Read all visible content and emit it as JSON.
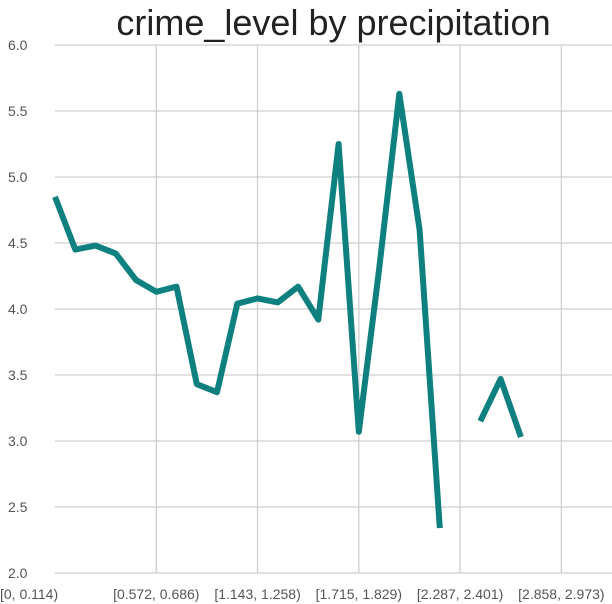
{
  "chart_data": {
    "type": "line",
    "title": "crime_level by precipitation",
    "xlabel": "",
    "ylabel": "",
    "ylim": [
      2.0,
      6.0
    ],
    "yticks": [
      "2.0",
      "2.5",
      "3.0",
      "3.5",
      "4.0",
      "4.5",
      "5.0",
      "5.5",
      "6.0"
    ],
    "xtick_labels": [
      "[0, 0.114)",
      "[0.572, 0.686)",
      "[1.143, 1.258)",
      "[1.715, 1.829)",
      "[2.287, 2.401)",
      "[2.858, 2.973)"
    ],
    "xtick_positions": [
      0,
      5,
      10,
      15,
      20,
      25
    ],
    "xlim": [
      0,
      27.5
    ],
    "grid": true,
    "series": [
      {
        "color": "#0f8080",
        "values": [
          4.85,
          4.45,
          4.48,
          4.42,
          4.22,
          4.13,
          4.17,
          3.43,
          3.37,
          4.04,
          4.08,
          4.05,
          4.17,
          3.92,
          5.25,
          3.07,
          4.3,
          5.63,
          4.6,
          2.34,
          null,
          3.15,
          3.47,
          3.03
        ]
      }
    ]
  }
}
